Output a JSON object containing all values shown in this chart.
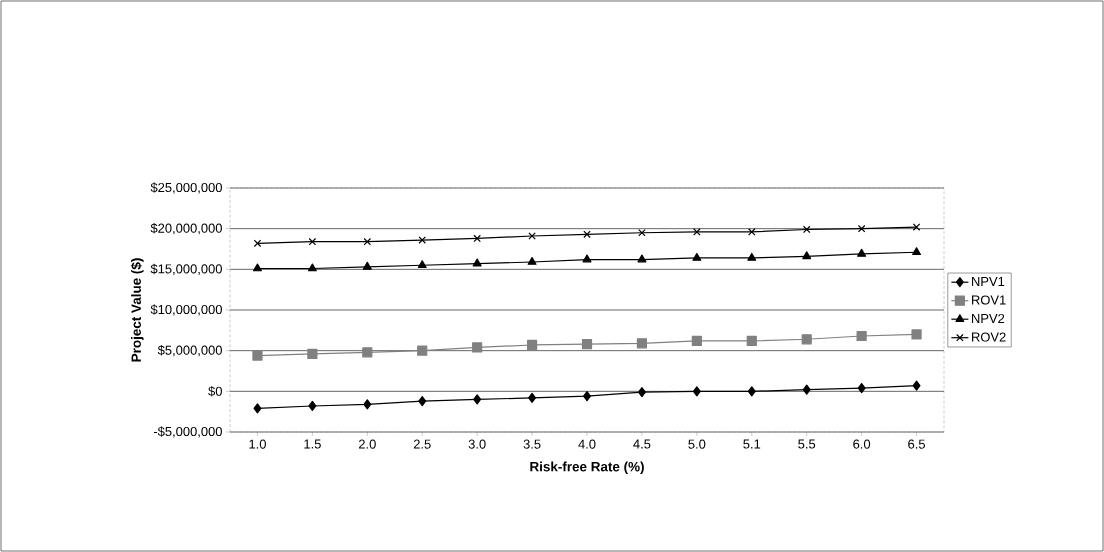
{
  "chart_data": {
    "type": "line",
    "xlabel": "Risk-free Rate (%)",
    "ylabel": "Project Value ($)",
    "categories": [
      "1.0",
      "1.5",
      "2.0",
      "2.5",
      "3.0",
      "3.5",
      "4.0",
      "4.5",
      "5.0",
      "5.1",
      "5.5",
      "6.0",
      "6.5"
    ],
    "series": [
      {
        "name": "NPV1",
        "color": "#000000",
        "marker": "diamond",
        "values": [
          -2100000,
          -1800000,
          -1600000,
          -1200000,
          -1000000,
          -800000,
          -600000,
          -100000,
          0,
          0,
          200000,
          400000,
          700000
        ]
      },
      {
        "name": "ROV1",
        "color": "#808080",
        "marker": "square",
        "values": [
          4400000,
          4600000,
          4800000,
          5000000,
          5400000,
          5700000,
          5800000,
          5900000,
          6200000,
          6200000,
          6400000,
          6800000,
          7000000
        ]
      },
      {
        "name": "NPV2",
        "color": "#000000",
        "marker": "triangle",
        "values": [
          15100000,
          15100000,
          15300000,
          15500000,
          15700000,
          15900000,
          16200000,
          16200000,
          16400000,
          16400000,
          16600000,
          16900000,
          17100000
        ]
      },
      {
        "name": "ROV2",
        "color": "#000000",
        "marker": "cross",
        "values": [
          18200000,
          18400000,
          18400000,
          18600000,
          18800000,
          19100000,
          19300000,
          19500000,
          19600000,
          19600000,
          19900000,
          20000000,
          20200000
        ]
      }
    ],
    "ylim": [
      -5000000,
      25000000
    ],
    "yticks": [
      {
        "value": -5000000,
        "label": "-$5,000,000"
      },
      {
        "value": 0,
        "label": "$0"
      },
      {
        "value": 5000000,
        "label": "$5,000,000"
      },
      {
        "value": 10000000,
        "label": "$10,000,000"
      },
      {
        "value": 15000000,
        "label": "$15,000,000"
      },
      {
        "value": 20000000,
        "label": "$20,000,000"
      },
      {
        "value": 25000000,
        "label": "$25,000,000"
      }
    ],
    "grid": "y",
    "legend": "right"
  }
}
